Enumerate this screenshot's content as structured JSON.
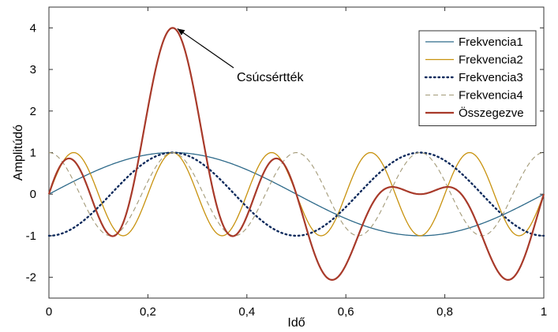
{
  "chart_data": {
    "type": "line",
    "title": "",
    "xlabel": "Idő",
    "ylabel": "Amplitúdó",
    "xlim": [
      0,
      1
    ],
    "ylim": [
      -2.5,
      4.5
    ],
    "grid": false,
    "legend_position": "top-right",
    "x_ticks": [
      0,
      0.2,
      0.4,
      0.6,
      0.8,
      1
    ],
    "x_tick_labels": [
      "0",
      "0,2",
      "0,4",
      "0,6",
      "0,8",
      "1"
    ],
    "y_ticks": [
      -2,
      -1,
      0,
      1,
      2,
      3,
      4
    ],
    "y_tick_labels": [
      "-2",
      "-1",
      "0",
      "1",
      "2",
      "3",
      "4"
    ],
    "series": [
      {
        "name": "Frekvencia1",
        "color": "#2e6a8a",
        "dash": "solid",
        "function": "sin(2πx)"
      },
      {
        "name": "Frekvencia2",
        "color": "#c8920e",
        "dash": "solid",
        "function": "sin(10πx)"
      },
      {
        "name": "Frekvencia3",
        "color": "#0d2a5c",
        "dash": "dotted",
        "function": "-cos(4πx)"
      },
      {
        "name": "Frekvencia4",
        "color": "#a39a78",
        "dash": "dashed",
        "function": "cos(8πx)"
      },
      {
        "name": "Összegezve",
        "color": "#a83a2a",
        "dash": "solid",
        "function": "sum of Frekvencia1..4"
      }
    ],
    "annotations": [
      {
        "text": "Csúcsértték",
        "x": 0.25,
        "y": 4
      }
    ]
  }
}
